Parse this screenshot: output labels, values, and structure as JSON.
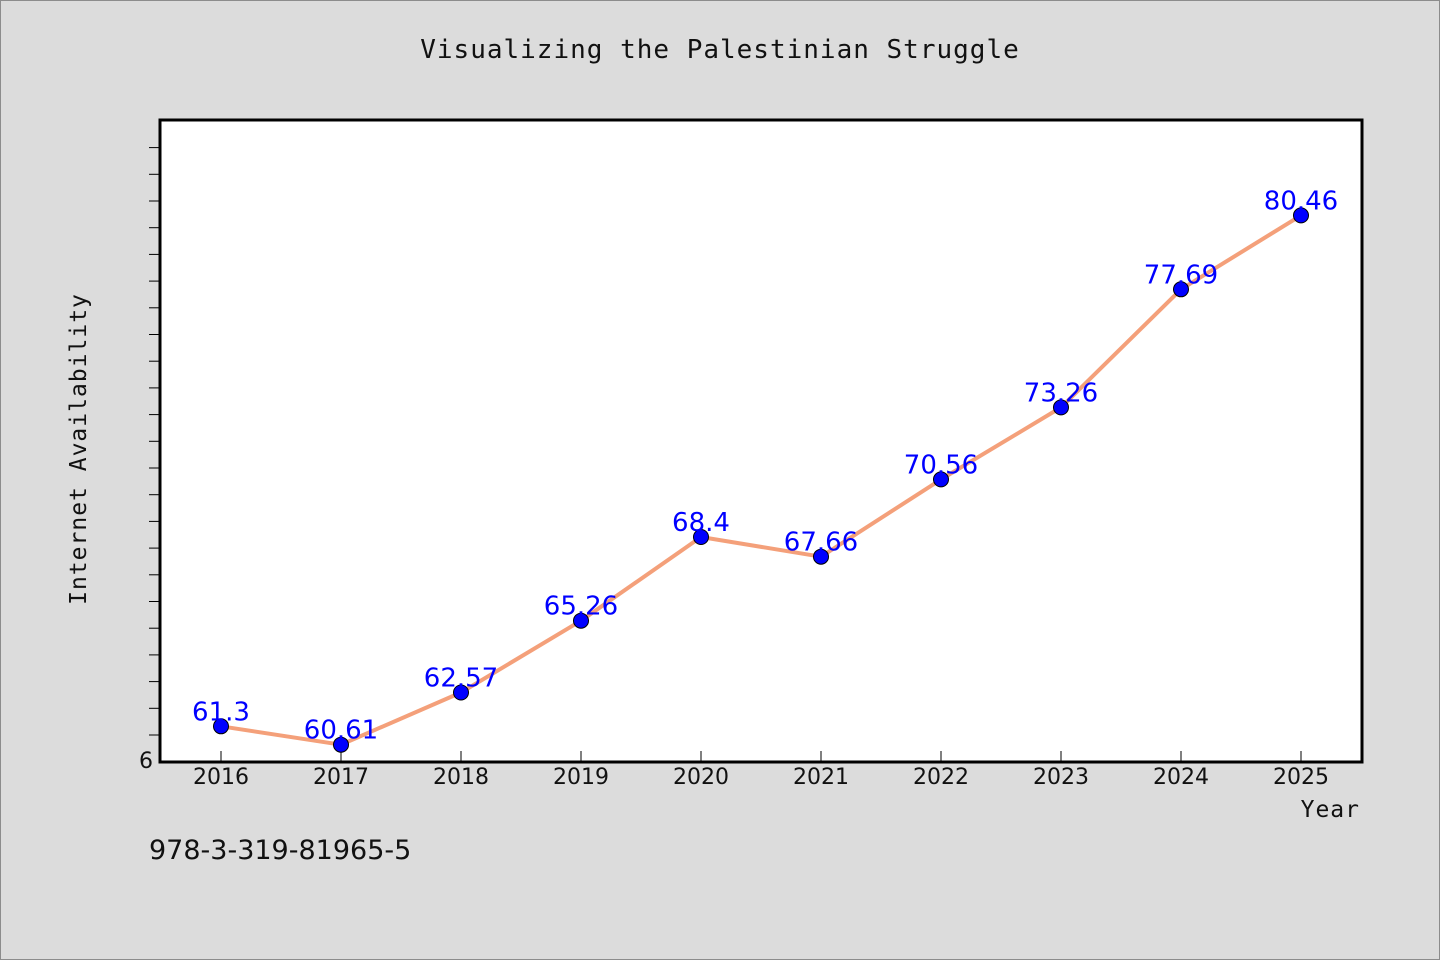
{
  "page": {
    "title": "Visualizing the Palestinian Struggle",
    "footer_note": "978-3-319-81965-5"
  },
  "chart_data": {
    "type": "line",
    "title": "Visualizing the Palestinian Struggle",
    "xlabel": "Year",
    "ylabel": "Internet Availability",
    "categories": [
      "2016",
      "2017",
      "2018",
      "2019",
      "2020",
      "2021",
      "2022",
      "2023",
      "2024",
      "2025"
    ],
    "series": [
      {
        "values": [
          61.3,
          60.61,
          62.57,
          65.26,
          68.4,
          67.66,
          70.56,
          73.26,
          77.69,
          80.46
        ],
        "labels": [
          "61.3",
          "60.61",
          "62.57",
          "65.26",
          "68.4",
          "67.66",
          "70.56",
          "73.26",
          "77.69",
          "80.46"
        ],
        "line_color": "#f4a07a",
        "marker_color": "#0000ff"
      }
    ],
    "y_tick_labels": [
      "6"
    ],
    "ylim": [
      60,
      84
    ],
    "grid": false,
    "legend": "none",
    "colors": {
      "background": "#dcdcdc",
      "plot_background": "#ffffff",
      "data_label": "#0000ff"
    }
  }
}
